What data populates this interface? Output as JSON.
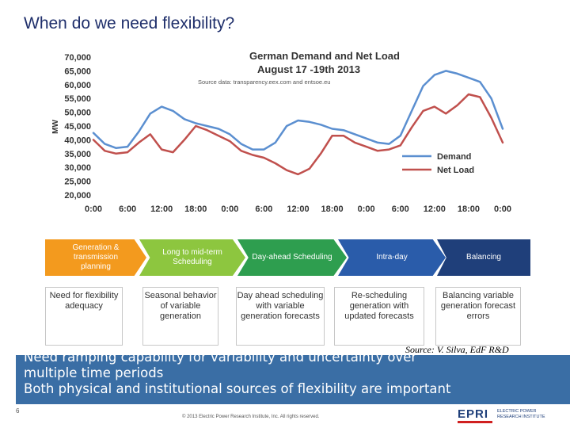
{
  "slide": {
    "title": "When do we need flexibility?",
    "source": "Source: V. Silva, EdF R&D",
    "page_number": "6",
    "copyright": "© 2013 Electric Power Research Institute, Inc. All rights reserved.",
    "bullets": [
      "Need ramping capability for variability and uncertainty over multiple time periods",
      "Both physical and institutional sources of flexibility are important"
    ],
    "logo": {
      "mark": "EPRI",
      "line1": "ELECTRIC POWER",
      "line2": "RESEARCH INSTITUTE"
    }
  },
  "stages": [
    {
      "label": "Generation & transmission planning",
      "color": "#f39a1e"
    },
    {
      "label": "Long to mid-term Scheduling",
      "color": "#8dc63f"
    },
    {
      "label": "Day-ahead Scheduling",
      "color": "#2e9e4f"
    },
    {
      "label": "Intra-day",
      "color": "#2a5caa"
    },
    {
      "label": "Balancing",
      "color": "#1f3f7a"
    }
  ],
  "descriptions": [
    "Need for flexibility adequacy",
    "Seasonal behavior of variable generation",
    "Day ahead scheduling with variable generation forecasts",
    "Re-scheduling generation with updated forecasts",
    "Balancing variable generation forecast errors"
  ],
  "chart_data": {
    "type": "line",
    "title": "German Demand and Net Load",
    "subtitle": "August 17 -19th 2013",
    "source_note": "Source data: transparency.eex.com and entsoe.eu",
    "ylabel": "MW",
    "xlabel": "",
    "ylim": [
      20000,
      70000
    ],
    "yticks": [
      "20,000",
      "25,000",
      "30,000",
      "35,000",
      "40,000",
      "45,000",
      "50,000",
      "55,000",
      "60,000",
      "65,000",
      "70,000"
    ],
    "x_ticks": [
      "0:00",
      "6:00",
      "12:00",
      "18:00",
      "0:00",
      "6:00",
      "12:00",
      "18:00",
      "0:00",
      "6:00",
      "12:00",
      "18:00",
      "0:00"
    ],
    "legend": "bottom-right",
    "x_hours": [
      0,
      2,
      4,
      6,
      8,
      10,
      12,
      14,
      16,
      18,
      20,
      22,
      24,
      26,
      28,
      30,
      32,
      34,
      36,
      38,
      40,
      42,
      44,
      46,
      48,
      50,
      52,
      54,
      56,
      58,
      60,
      62,
      64,
      66,
      68,
      70,
      72
    ],
    "series": [
      {
        "name": "Demand",
        "color": "#5b8fd0",
        "values": [
          42500,
          38500,
          37000,
          37500,
          43000,
          49500,
          52000,
          50500,
          47500,
          46000,
          45000,
          44000,
          42000,
          38500,
          36500,
          36500,
          39000,
          45000,
          47000,
          46500,
          45500,
          44000,
          43500,
          42000,
          40500,
          39000,
          38500,
          41500,
          50500,
          59500,
          63500,
          65000,
          64000,
          62500,
          61000,
          55000,
          44000
        ]
      },
      {
        "name": "Net Load",
        "color": "#c0504d",
        "values": [
          40000,
          36000,
          35000,
          35500,
          39000,
          42000,
          36500,
          35500,
          40000,
          45000,
          43500,
          41500,
          39500,
          36000,
          34500,
          33500,
          31500,
          29000,
          27500,
          29500,
          35000,
          41500,
          41500,
          39000,
          37500,
          36000,
          36500,
          38000,
          44500,
          50500,
          52000,
          49500,
          52500,
          56500,
          55500,
          48000,
          39000
        ]
      }
    ]
  }
}
